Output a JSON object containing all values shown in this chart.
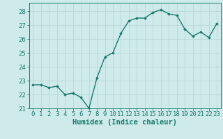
{
  "x": [
    0,
    1,
    2,
    3,
    4,
    5,
    6,
    7,
    8,
    9,
    10,
    11,
    12,
    13,
    14,
    15,
    16,
    17,
    18,
    19,
    20,
    21,
    22,
    23
  ],
  "y": [
    22.7,
    22.7,
    22.5,
    22.6,
    22.0,
    22.1,
    21.8,
    21.0,
    23.2,
    24.7,
    25.0,
    26.4,
    27.3,
    27.5,
    27.5,
    27.9,
    28.1,
    27.8,
    27.7,
    26.7,
    26.2,
    26.5,
    26.1,
    27.1
  ],
  "line_color": "#1a7a6e",
  "marker": "D",
  "marker_size": 2,
  "line_width": 1.0,
  "bg_color": "#ceeaea",
  "grid_color": "#b8d8d8",
  "xlabel": "Humidex (Indice chaleur)",
  "xlim": [
    -0.5,
    23.5
  ],
  "ylim": [
    21,
    28.6
  ],
  "yticks": [
    21,
    22,
    23,
    24,
    25,
    26,
    27,
    28
  ],
  "xticks": [
    0,
    1,
    2,
    3,
    4,
    5,
    6,
    7,
    8,
    9,
    10,
    11,
    12,
    13,
    14,
    15,
    16,
    17,
    18,
    19,
    20,
    21,
    22,
    23
  ],
  "tick_font_size": 6.5,
  "xlabel_font_size": 7.5
}
